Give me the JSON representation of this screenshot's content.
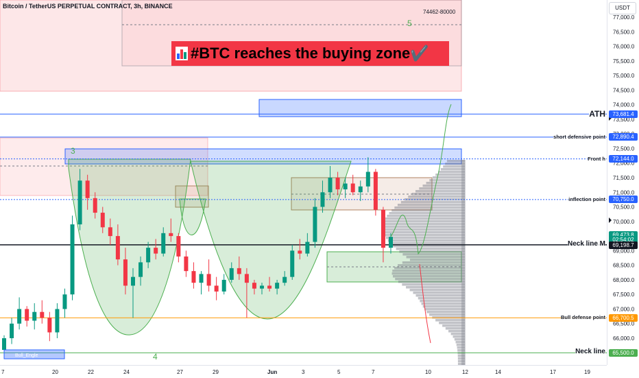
{
  "title": "Bitcoin / TetherUS PERPETUAL CONTRACT, 3h, BINANCE",
  "currency_badge": "USDT",
  "headline": "#BTC reaches the buying zone✔️",
  "zone_label": "74462-80000",
  "wave_labels": [
    "5",
    "3",
    "4"
  ],
  "indicator_label": "Bull_Engle",
  "annotations": [
    {
      "text": "ATH",
      "price": 73681.4,
      "color": "#2962ff"
    },
    {
      "text": "short defensive point",
      "price": 72890.4,
      "color": "#2962ff"
    },
    {
      "text": "Front h",
      "price": 72144.0,
      "color": "#2962ff"
    },
    {
      "text": "inflection point",
      "price": 70750.0,
      "color": "#2962ff"
    },
    {
      "text": "Neck line M",
      "price": 69198.7,
      "color": "#131722"
    },
    {
      "text": "Bull defense point",
      "price": 66700.5,
      "color": "#ff9800"
    },
    {
      "text": "Neck line",
      "price": 65500.0,
      "color": "#4caf50"
    }
  ],
  "price_tags": [
    {
      "text": "73,681.4",
      "price": 73681.4,
      "color": "#2962ff"
    },
    {
      "text": "72,890.4",
      "price": 72890.4,
      "color": "#2962ff"
    },
    {
      "text": "72,144.0",
      "price": 72144.0,
      "color": "#2962ff"
    },
    {
      "text": "70,750.0",
      "price": 70750.0,
      "color": "#2962ff"
    },
    {
      "text": "69,473.8",
      "price": 69540,
      "color": "#089981"
    },
    {
      "text": "02:54:02",
      "price": 69380,
      "color": "#089981"
    },
    {
      "text": "69,198.7",
      "price": 69180,
      "color": "#131722"
    },
    {
      "text": "66,700.5",
      "price": 66700.5,
      "color": "#ff9800"
    },
    {
      "text": "65,500.0",
      "price": 65500.0,
      "color": "#4caf50"
    }
  ],
  "chart_data": {
    "type": "candlestick",
    "title": "Bitcoin / TetherUS PERPETUAL CONTRACT, 3h, BINANCE",
    "y_axis_ticks": [
      77000,
      76500,
      76000,
      75500,
      75000,
      74500,
      74000,
      73500,
      73000,
      72500,
      72000,
      71500,
      71000,
      70500,
      70000,
      69500,
      69000,
      68500,
      68000,
      67500,
      67000,
      66500,
      66000
    ],
    "y_tick_labels": [
      "77,000.0",
      "76,500.0",
      "76,000.0",
      "75,500.0",
      "75,000.0",
      "74,500.0",
      "74,000.0",
      "73,500.0",
      "73,000.0",
      "72,500.0",
      "72,000.0",
      "71,500.0",
      "71,000.0",
      "70,500.0",
      "70,000.0",
      "69,500.0",
      "69,000.0",
      "68,500.0",
      "68,000.0",
      "67,500.0",
      "67,000.0",
      "66,500.0",
      "66,000.0"
    ],
    "ylim": [
      65300,
      77500
    ],
    "x_tick_labels": [
      "7",
      "20",
      "22",
      "24",
      "27",
      "29",
      "Jun",
      "3",
      "5",
      "7",
      "10",
      "12",
      "14",
      "17",
      "19"
    ],
    "horizontal_lines": [
      {
        "name": "ATH",
        "price": 73681.4,
        "color": "#2962ff"
      },
      {
        "name": "short defensive point",
        "price": 72890.4,
        "color": "#2962ff"
      },
      {
        "name": "Front h",
        "price": 72144.0,
        "color": "#2962ff",
        "dotted": true
      },
      {
        "name": "inflection point",
        "price": 70750.0,
        "color": "#2962ff",
        "dotted": true
      },
      {
        "name": "Neck line M",
        "price": 69198.7,
        "color": "#131722"
      },
      {
        "name": "Bull defense point",
        "price": 66700.5,
        "color": "#ff9800"
      },
      {
        "name": "Neck line",
        "price": 65500.0,
        "color": "#4caf50"
      }
    ],
    "candles": [
      {
        "o": 65600,
        "h": 66100,
        "l": 65400,
        "c": 66000
      },
      {
        "o": 66000,
        "h": 66700,
        "l": 65800,
        "c": 66500
      },
      {
        "o": 66500,
        "h": 67400,
        "l": 66300,
        "c": 67000
      },
      {
        "o": 67000,
        "h": 67100,
        "l": 66400,
        "c": 66600
      },
      {
        "o": 66600,
        "h": 67200,
        "l": 66300,
        "c": 66900
      },
      {
        "o": 66900,
        "h": 67300,
        "l": 66500,
        "c": 66700
      },
      {
        "o": 66700,
        "h": 66900,
        "l": 65900,
        "c": 66200
      },
      {
        "o": 66200,
        "h": 67200,
        "l": 66000,
        "c": 67000
      },
      {
        "o": 67000,
        "h": 67700,
        "l": 66700,
        "c": 67500
      },
      {
        "o": 67500,
        "h": 70200,
        "l": 67300,
        "c": 69900
      },
      {
        "o": 69900,
        "h": 71800,
        "l": 69700,
        "c": 71400
      },
      {
        "o": 71400,
        "h": 71600,
        "l": 70400,
        "c": 70800
      },
      {
        "o": 70800,
        "h": 71000,
        "l": 70100,
        "c": 70300
      },
      {
        "o": 70300,
        "h": 70500,
        "l": 69600,
        "c": 69800
      },
      {
        "o": 69800,
        "h": 70100,
        "l": 69200,
        "c": 69500
      },
      {
        "o": 69500,
        "h": 69900,
        "l": 68500,
        "c": 68700
      },
      {
        "o": 68700,
        "h": 69100,
        "l": 67500,
        "c": 67800
      },
      {
        "o": 67800,
        "h": 68400,
        "l": 66700,
        "c": 68100
      },
      {
        "o": 68100,
        "h": 68800,
        "l": 67800,
        "c": 68600
      },
      {
        "o": 68600,
        "h": 69300,
        "l": 68400,
        "c": 69100
      },
      {
        "o": 69100,
        "h": 69400,
        "l": 68700,
        "c": 68900
      },
      {
        "o": 68900,
        "h": 69800,
        "l": 68800,
        "c": 69600
      },
      {
        "o": 69600,
        "h": 70100,
        "l": 69300,
        "c": 69500
      },
      {
        "o": 69500,
        "h": 69600,
        "l": 68600,
        "c": 68800
      },
      {
        "o": 68800,
        "h": 69000,
        "l": 68100,
        "c": 68300
      },
      {
        "o": 68300,
        "h": 68600,
        "l": 67700,
        "c": 67900
      },
      {
        "o": 67900,
        "h": 68300,
        "l": 67500,
        "c": 68200
      },
      {
        "o": 68200,
        "h": 68700,
        "l": 67600,
        "c": 67800
      },
      {
        "o": 67800,
        "h": 68100,
        "l": 67300,
        "c": 67600
      },
      {
        "o": 67600,
        "h": 68200,
        "l": 67500,
        "c": 68000
      },
      {
        "o": 68000,
        "h": 68600,
        "l": 67900,
        "c": 68400
      },
      {
        "o": 68400,
        "h": 68800,
        "l": 68000,
        "c": 68200
      },
      {
        "o": 68200,
        "h": 68400,
        "l": 66700,
        "c": 67900
      },
      {
        "o": 67900,
        "h": 68000,
        "l": 67500,
        "c": 67700
      },
      {
        "o": 67700,
        "h": 67900,
        "l": 67500,
        "c": 67800
      },
      {
        "o": 67800,
        "h": 68100,
        "l": 67600,
        "c": 67700
      },
      {
        "o": 67700,
        "h": 68000,
        "l": 67500,
        "c": 67900
      },
      {
        "o": 67900,
        "h": 68300,
        "l": 67800,
        "c": 68100
      },
      {
        "o": 68100,
        "h": 69200,
        "l": 68000,
        "c": 69000
      },
      {
        "o": 69000,
        "h": 69400,
        "l": 68700,
        "c": 68900
      },
      {
        "o": 68900,
        "h": 69600,
        "l": 68800,
        "c": 69300
      },
      {
        "o": 69300,
        "h": 70800,
        "l": 69100,
        "c": 70500
      },
      {
        "o": 70500,
        "h": 71400,
        "l": 70300,
        "c": 71000
      },
      {
        "o": 71000,
        "h": 71900,
        "l": 70800,
        "c": 71500
      },
      {
        "o": 71500,
        "h": 71700,
        "l": 70900,
        "c": 71100
      },
      {
        "o": 71100,
        "h": 71500,
        "l": 70800,
        "c": 71300
      },
      {
        "o": 71300,
        "h": 71600,
        "l": 70900,
        "c": 71000
      },
      {
        "o": 71000,
        "h": 71400,
        "l": 70700,
        "c": 71200
      },
      {
        "o": 71200,
        "h": 72200,
        "l": 71000,
        "c": 71700
      },
      {
        "o": 71700,
        "h": 71800,
        "l": 70200,
        "c": 70400
      },
      {
        "o": 70400,
        "h": 70500,
        "l": 68600,
        "c": 69100
      },
      {
        "o": 69100,
        "h": 69600,
        "l": 68900,
        "c": 69474
      }
    ],
    "projection": "green curve from ~69,500 rising to ATH box ~73,700; red line falling to ~66,000"
  }
}
